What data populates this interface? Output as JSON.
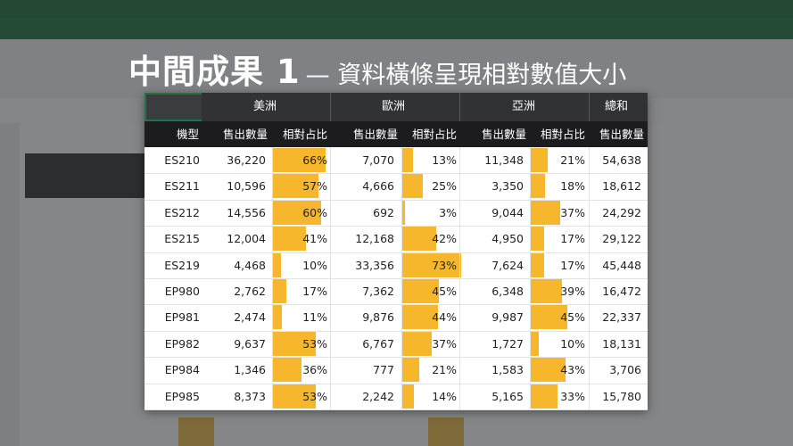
{
  "headline": {
    "main": "中間成果 1",
    "sub": "— 資料橫條呈現相對數值大小"
  },
  "groups": {
    "americas": "美洲",
    "europe": "歐洲",
    "asia": "亞洲",
    "total": "總和"
  },
  "columns": {
    "model": "機型",
    "am_qty": "售出數量",
    "am_pct": "相對占比",
    "eu_qty": "售出數量",
    "eu_pct": "相對占比",
    "as_qty": "售出數量",
    "as_pct": "相對占比",
    "total_qty": "售出數量"
  },
  "colors": {
    "bar": "#f6b72c",
    "header_dark": "#1c1c1e",
    "accent_border": "#217346"
  },
  "rows": [
    {
      "model": "ES210",
      "am_qty": "36,220",
      "am_pct": "66%",
      "am_frac": 0.66,
      "eu_qty": "7,070",
      "eu_pct": "13%",
      "eu_frac": 0.13,
      "as_qty": "11,348",
      "as_pct": "21%",
      "as_frac": 0.21,
      "total": "54,638"
    },
    {
      "model": "ES211",
      "am_qty": "10,596",
      "am_pct": "57%",
      "am_frac": 0.57,
      "eu_qty": "4,666",
      "eu_pct": "25%",
      "eu_frac": 0.25,
      "as_qty": "3,350",
      "as_pct": "18%",
      "as_frac": 0.18,
      "total": "18,612"
    },
    {
      "model": "ES212",
      "am_qty": "14,556",
      "am_pct": "60%",
      "am_frac": 0.6,
      "eu_qty": "692",
      "eu_pct": "3%",
      "eu_frac": 0.03,
      "as_qty": "9,044",
      "as_pct": "37%",
      "as_frac": 0.37,
      "total": "24,292"
    },
    {
      "model": "ES215",
      "am_qty": "12,004",
      "am_pct": "41%",
      "am_frac": 0.41,
      "eu_qty": "12,168",
      "eu_pct": "42%",
      "eu_frac": 0.42,
      "as_qty": "4,950",
      "as_pct": "17%",
      "as_frac": 0.17,
      "total": "29,122"
    },
    {
      "model": "ES219",
      "am_qty": "4,468",
      "am_pct": "10%",
      "am_frac": 0.1,
      "eu_qty": "33,356",
      "eu_pct": "73%",
      "eu_frac": 0.73,
      "as_qty": "7,624",
      "as_pct": "17%",
      "as_frac": 0.17,
      "total": "45,448"
    },
    {
      "model": "EP980",
      "am_qty": "2,762",
      "am_pct": "17%",
      "am_frac": 0.17,
      "eu_qty": "7,362",
      "eu_pct": "45%",
      "eu_frac": 0.45,
      "as_qty": "6,348",
      "as_pct": "39%",
      "as_frac": 0.39,
      "total": "16,472"
    },
    {
      "model": "EP981",
      "am_qty": "2,474",
      "am_pct": "11%",
      "am_frac": 0.11,
      "eu_qty": "9,876",
      "eu_pct": "44%",
      "eu_frac": 0.44,
      "as_qty": "9,987",
      "as_pct": "45%",
      "as_frac": 0.45,
      "total": "22,337"
    },
    {
      "model": "EP982",
      "am_qty": "9,637",
      "am_pct": "53%",
      "am_frac": 0.53,
      "eu_qty": "6,767",
      "eu_pct": "37%",
      "eu_frac": 0.37,
      "as_qty": "1,727",
      "as_pct": "10%",
      "as_frac": 0.1,
      "total": "18,131"
    },
    {
      "model": "EP984",
      "am_qty": "1,346",
      "am_pct": "36%",
      "am_frac": 0.36,
      "eu_qty": "777",
      "eu_pct": "21%",
      "eu_frac": 0.21,
      "as_qty": "1,583",
      "as_pct": "43%",
      "as_frac": 0.43,
      "total": "3,706"
    },
    {
      "model": "EP985",
      "am_qty": "8,373",
      "am_pct": "53%",
      "am_frac": 0.53,
      "eu_qty": "2,242",
      "eu_pct": "14%",
      "eu_frac": 0.14,
      "as_qty": "5,165",
      "as_pct": "33%",
      "as_frac": 0.33,
      "total": "15,780"
    }
  ]
}
